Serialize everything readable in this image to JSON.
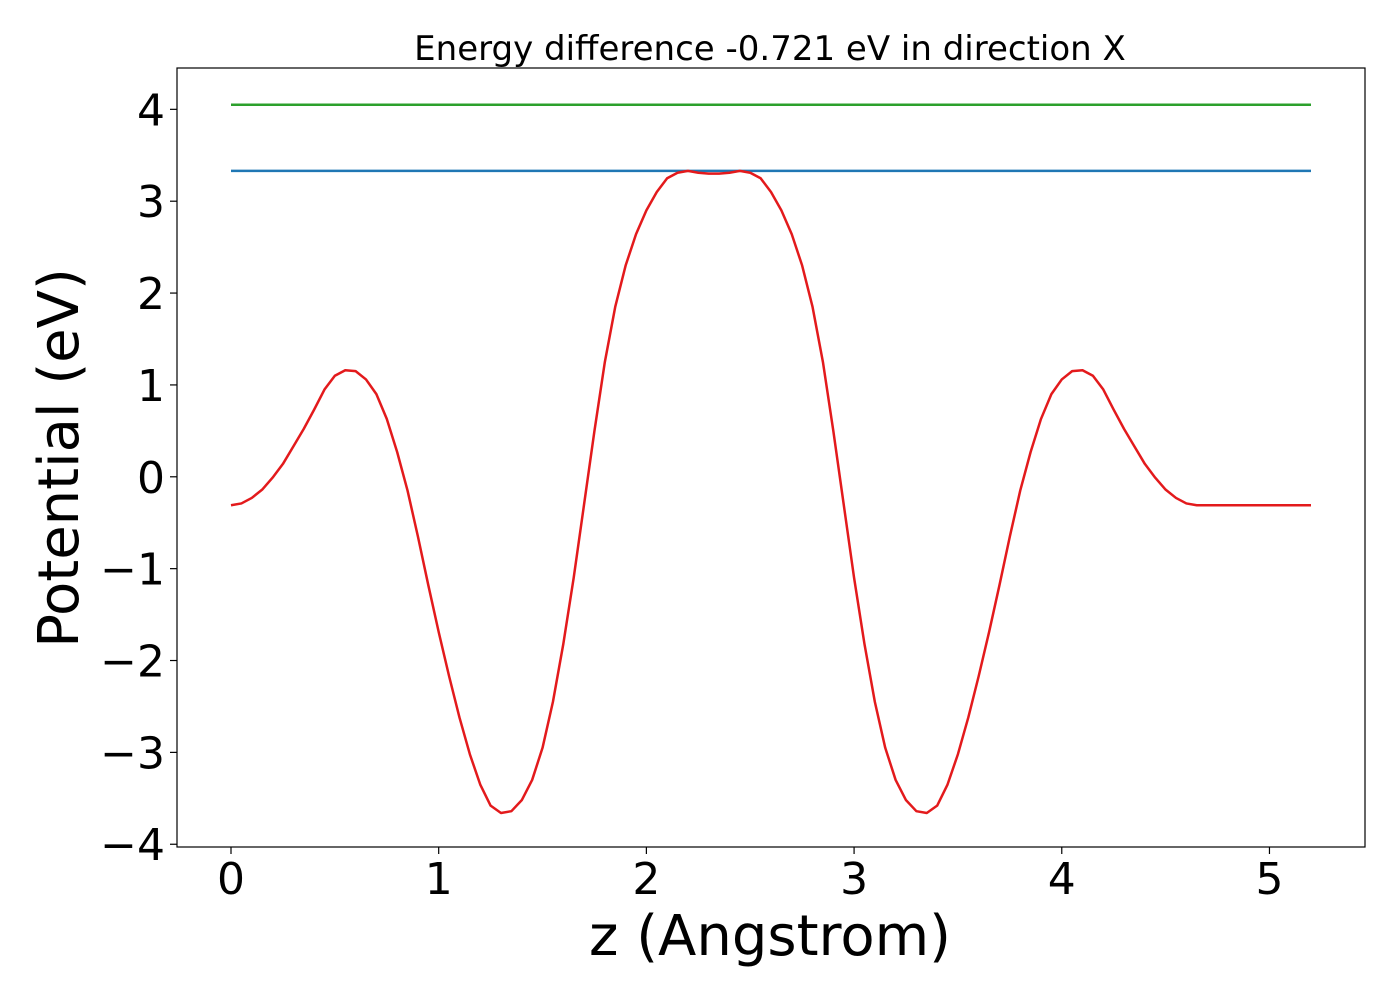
{
  "chart_data": {
    "type": "line",
    "title": "Energy difference -0.721 eV in direction X",
    "xlabel": "z (Angstrom)",
    "ylabel": "Potential (eV)",
    "xlim": [
      -0.26,
      5.46
    ],
    "ylim": [
      -4.03,
      4.45
    ],
    "xticks": [
      0,
      1,
      2,
      3,
      4,
      5
    ],
    "xtick_labels": [
      "0",
      "1",
      "2",
      "3",
      "4",
      "5"
    ],
    "yticks": [
      -4,
      -3,
      -2,
      -1,
      0,
      1,
      2,
      3,
      4
    ],
    "ytick_labels": [
      "−4",
      "−3",
      "−2",
      "−1",
      "0",
      "1",
      "2",
      "3",
      "4"
    ],
    "grid": false,
    "series": [
      {
        "color": "#2ca02c",
        "x": [
          0,
          5.2
        ],
        "y": [
          4.05,
          4.05
        ]
      },
      {
        "color": "#1f77b4",
        "x": [
          0,
          5.2
        ],
        "y": [
          3.33,
          3.33
        ]
      },
      {
        "color": "#e31a1c",
        "x": [
          0,
          0.05,
          0.1,
          0.15,
          0.2,
          0.25,
          0.3,
          0.35,
          0.4,
          0.45,
          0.5,
          0.55,
          0.6,
          0.65,
          0.7,
          0.75,
          0.8,
          0.85,
          0.9,
          0.95,
          1.0,
          1.05,
          1.1,
          1.15,
          1.2,
          1.25,
          1.3,
          1.35,
          1.4,
          1.45,
          1.5,
          1.55,
          1.6,
          1.65,
          1.7,
          1.75,
          1.8,
          1.85,
          1.9,
          1.95,
          2.0,
          2.05,
          2.1,
          2.15,
          2.2,
          2.25,
          2.3,
          2.35,
          2.4,
          2.45,
          2.5,
          2.55,
          2.6,
          2.65,
          2.7,
          2.75,
          2.8,
          2.85,
          2.9,
          2.95,
          3.0,
          3.05,
          3.1,
          3.15,
          3.2,
          3.25,
          3.3,
          3.35,
          3.4,
          3.45,
          3.5,
          3.55,
          3.6,
          3.65,
          3.7,
          3.75,
          3.8,
          3.85,
          3.9,
          3.95,
          4.0,
          4.05,
          4.1,
          4.15,
          4.2,
          4.25,
          4.3,
          4.35,
          4.4,
          4.45,
          4.5,
          4.55,
          4.6,
          4.65,
          4.7,
          4.75,
          4.8,
          4.85,
          4.9,
          4.95,
          5.0,
          5.05,
          5.1,
          5.15,
          5.2
        ],
        "y": [
          -0.31,
          -0.29,
          -0.23,
          -0.14,
          -0.01,
          0.14,
          0.33,
          0.52,
          0.73,
          0.95,
          1.1,
          1.16,
          1.15,
          1.06,
          0.9,
          0.63,
          0.27,
          -0.15,
          -0.65,
          -1.18,
          -1.69,
          -2.17,
          -2.62,
          -3.02,
          -3.35,
          -3.58,
          -3.66,
          -3.64,
          -3.52,
          -3.3,
          -2.95,
          -2.45,
          -1.82,
          -1.1,
          -0.3,
          0.5,
          1.25,
          1.85,
          2.3,
          2.64,
          2.9,
          3.1,
          3.25,
          3.31,
          3.33,
          3.31,
          3.3,
          3.3,
          3.31,
          3.33,
          3.31,
          3.25,
          3.1,
          2.9,
          2.64,
          2.3,
          1.85,
          1.25,
          0.5,
          -0.3,
          -1.1,
          -1.82,
          -2.45,
          -2.95,
          -3.3,
          -3.52,
          -3.64,
          -3.66,
          -3.58,
          -3.35,
          -3.02,
          -2.62,
          -2.17,
          -1.69,
          -1.18,
          -0.65,
          -0.15,
          0.27,
          0.63,
          0.9,
          1.06,
          1.15,
          1.16,
          1.1,
          0.95,
          0.73,
          0.52,
          0.33,
          0.14,
          -0.01,
          -0.14,
          -0.23,
          -0.29,
          -0.31,
          -0.31,
          -0.31,
          -0.31,
          -0.31,
          -0.31,
          -0.31,
          -0.31,
          -0.31,
          -0.31,
          -0.31,
          -0.31
        ]
      }
    ]
  }
}
